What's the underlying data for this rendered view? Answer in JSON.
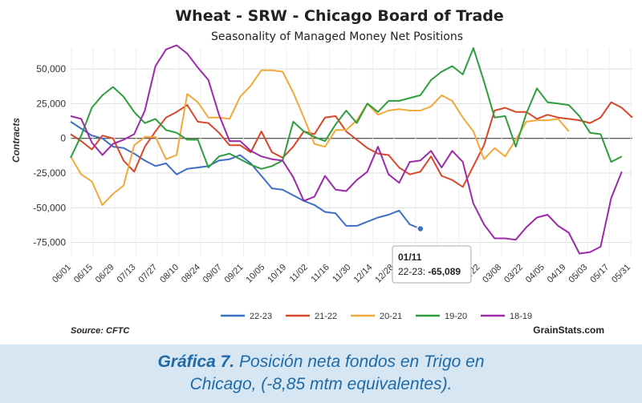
{
  "chart_data": {
    "type": "line",
    "title": "Wheat - SRW - Chicago Board of Trade",
    "subtitle": "Seasonality of Managed Money Net Positions",
    "ylabel": "Contracts",
    "xlabel": "",
    "ylim": [
      -85000,
      65000
    ],
    "yticks": [
      -75000,
      -50000,
      -25000,
      0,
      25000,
      50000
    ],
    "ytick_labels": [
      "-75,000",
      "-50,000",
      "-25,000",
      "0",
      "25,000",
      "50,000"
    ],
    "x_tick_labels": [
      "06/01",
      "06/15",
      "06/29",
      "07/13",
      "07/27",
      "08/10",
      "08/24",
      "09/07",
      "09/21",
      "10/05",
      "10/19",
      "11/02",
      "11/16",
      "11/30",
      "12/14",
      "12/28",
      "01/11",
      "01/25",
      "02/08",
      "02/22",
      "03/08",
      "03/22",
      "04/05",
      "04/19",
      "05/03",
      "05/17",
      "05/31"
    ],
    "grid": true,
    "legend_position": "bottom",
    "source": "Source: CFTC",
    "brand": "GrainStats.com",
    "series": [
      {
        "name": "22-23",
        "color": "#3c6fc6",
        "values": [
          12000,
          7000,
          2000,
          0,
          -6000,
          -7000,
          -11000,
          -16000,
          -20000,
          -18000,
          -26000,
          -22000,
          -21000,
          -20000,
          -16000,
          -15000,
          -12000,
          -18000,
          -27000,
          -36000,
          -37000,
          -41000,
          -45000,
          -48000,
          -53000,
          -54000,
          -63000,
          -63000,
          -60000,
          -57000,
          -55000,
          -52000,
          -62000,
          -65089
        ]
      },
      {
        "name": "21-22",
        "color": "#d9472b",
        "values": [
          3000,
          -2000,
          -8000,
          2000,
          0,
          -16000,
          -24000,
          -6000,
          5000,
          15000,
          19000,
          24000,
          12000,
          11000,
          4000,
          -5000,
          -5000,
          -10000,
          5000,
          -10000,
          -14000,
          -6000,
          5000,
          3000,
          15000,
          16000,
          5000,
          -1000,
          -7000,
          -11000,
          -12000,
          -21000,
          -26000,
          -24000,
          -13000,
          -27000,
          -30000,
          -35000,
          -20000,
          -5000,
          20000,
          22000,
          19000,
          19000,
          14000,
          17000,
          15000,
          14000,
          13000,
          11000,
          15000,
          26000,
          22000,
          15000
        ]
      },
      {
        "name": "20-21",
        "color": "#f2a93b",
        "values": [
          -13000,
          -26000,
          -31000,
          -48000,
          -40000,
          -34000,
          -5000,
          1000,
          1000,
          -15000,
          -12000,
          32000,
          26000,
          15000,
          15000,
          14000,
          30000,
          38000,
          49000,
          49000,
          48000,
          33000,
          15000,
          -4000,
          -6000,
          6000,
          6000,
          13000,
          25000,
          17000,
          20000,
          21000,
          20000,
          20000,
          23000,
          31000,
          27000,
          15000,
          5000,
          -15000,
          -7000,
          -13000,
          -1000,
          12000,
          13000,
          13000,
          14000,
          5000
        ]
      },
      {
        "name": "19-20",
        "color": "#2e9e3c",
        "values": [
          -14000,
          2000,
          22000,
          31000,
          37000,
          30000,
          19000,
          11000,
          14000,
          6000,
          4000,
          -1000,
          -1000,
          -21000,
          -13000,
          -11000,
          -15000,
          -19000,
          -22000,
          -20000,
          -16000,
          12000,
          5000,
          1000,
          -2000,
          10000,
          20000,
          11000,
          25000,
          19000,
          27000,
          27000,
          29000,
          31000,
          42000,
          48000,
          52000,
          46000,
          65000,
          41000,
          15000,
          16000,
          -6000,
          18000,
          36000,
          26000,
          25000,
          24000,
          16000,
          4000,
          3000,
          -17000,
          -13000
        ]
      },
      {
        "name": "18-19",
        "color": "#9c2aa9",
        "values": [
          16000,
          14000,
          -3000,
          -12000,
          -4000,
          -1000,
          3000,
          20000,
          52000,
          64000,
          67000,
          61000,
          51000,
          42000,
          17000,
          -2000,
          -2000,
          -9000,
          -13000,
          -15000,
          -16000,
          -28000,
          -45000,
          -42000,
          -27000,
          -37000,
          -38000,
          -30000,
          -24000,
          -6000,
          -26000,
          -32000,
          -17000,
          -16000,
          -9000,
          -21000,
          -9000,
          -17000,
          -47000,
          -62000,
          -72000,
          -72000,
          -73000,
          -64000,
          -57000,
          -55000,
          -63000,
          -68000,
          -83000,
          -82000,
          -78000,
          -43000,
          -24000
        ]
      }
    ],
    "tooltip": {
      "date": "01/11",
      "series_label": "22-23:",
      "value_label": "-65,089"
    }
  },
  "caption": {
    "bold": "Gráfica 7.",
    "line1_rest": " Posición neta fondos en Trigo en",
    "line2": "Chicago, (-8,85 mtm equivalentes)."
  }
}
